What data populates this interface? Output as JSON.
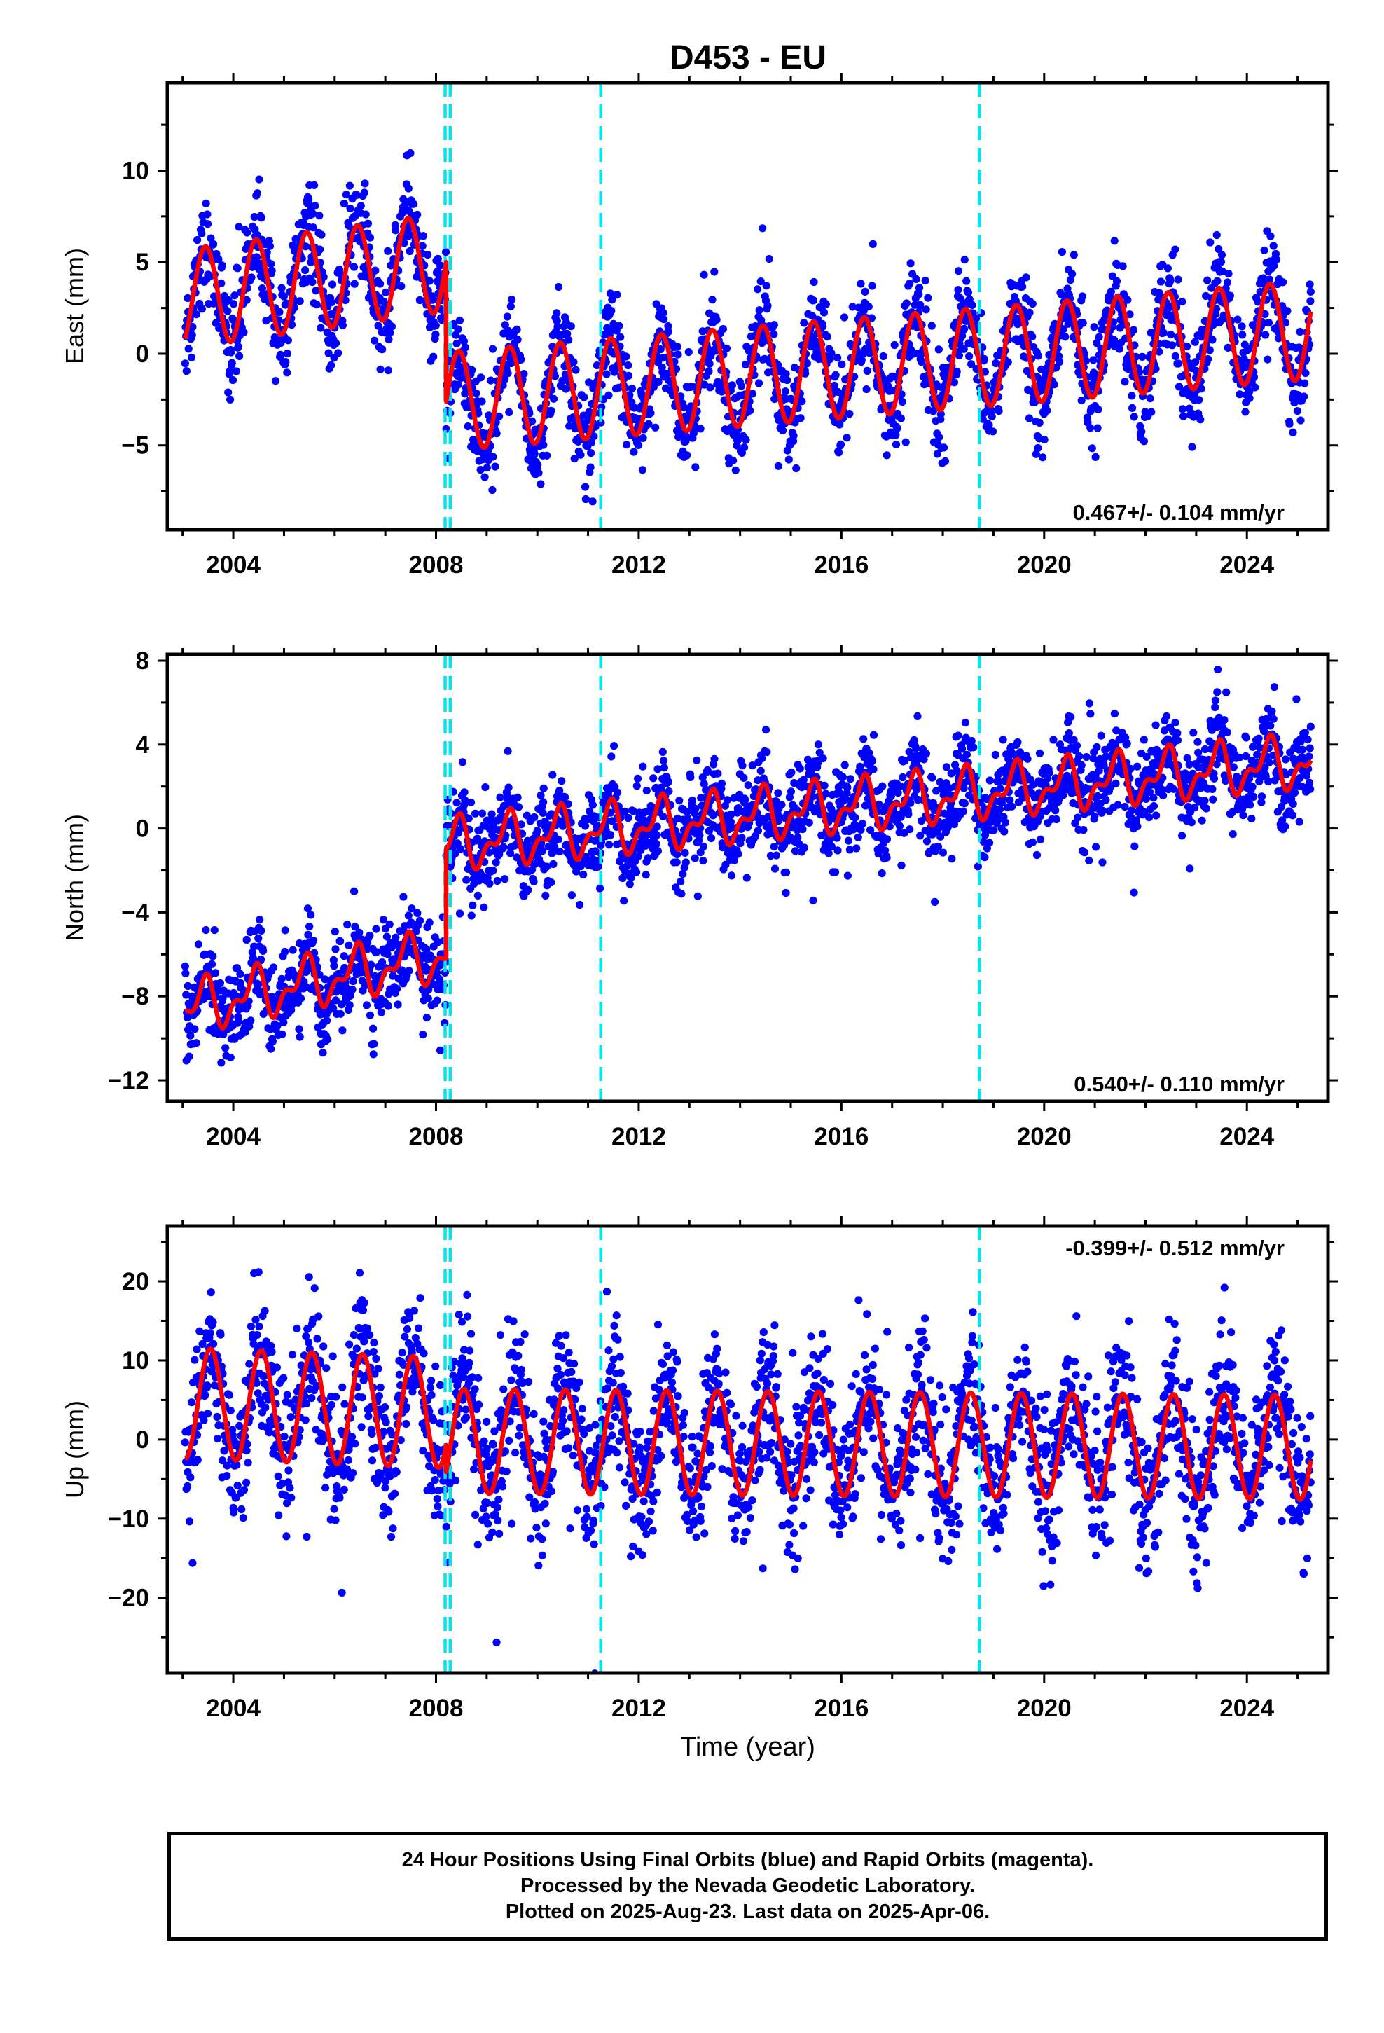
{
  "title": "D453 - EU",
  "colors": {
    "data": "#0000ff",
    "model": "#ff0000",
    "steps": "#00e5ee",
    "frame": "#000000"
  },
  "chart_data": [
    {
      "type": "scatter",
      "component": "east",
      "ylabel": "East (mm)",
      "xlabel": "",
      "xlim": [
        2002.7,
        2025.6
      ],
      "ylim": [
        -9.6,
        14.8
      ],
      "xticks": [
        2004,
        2008,
        2012,
        2016,
        2020,
        2024
      ],
      "yticks": [
        -5,
        0,
        5,
        10
      ],
      "rate_label": "0.467+/- 0.104 mm/yr",
      "rate_position": "bottom-right",
      "data_start": 2003.05,
      "data_end": 2025.26,
      "offset_lines": [
        2008.18,
        2008.28,
        2011.25,
        2018.72
      ],
      "model": {
        "segments": [
          {
            "start": 2003.05,
            "end": 2008.2,
            "level_start": 3.0,
            "level_end": 5.0,
            "amplitude": 2.7
          },
          {
            "start": 2008.2,
            "end": 2025.26,
            "level_start": -2.6,
            "level_end": 1.3,
            "amplitude": 2.7
          }
        ],
        "phase_peak": 0.45
      },
      "scatter_noise": 1.3,
      "approx_counts": 8000
    },
    {
      "type": "scatter",
      "component": "north",
      "ylabel": "North (mm)",
      "xlabel": "",
      "xlim": [
        2002.7,
        2025.6
      ],
      "ylim": [
        -13.0,
        8.3
      ],
      "xticks": [
        2004,
        2008,
        2012,
        2016,
        2020,
        2024
      ],
      "yticks": [
        -12,
        -8,
        -4,
        0,
        4,
        8
      ],
      "rate_label": "0.540+/- 0.110 mm/yr",
      "rate_position": "bottom-right",
      "data_start": 2003.05,
      "data_end": 2025.26,
      "offset_lines": [
        2008.18,
        2008.28,
        2011.25,
        2018.72
      ],
      "model": {
        "segments": [
          {
            "start": 2003.05,
            "end": 2008.2,
            "level_start": -8.6,
            "level_end": -6.0,
            "amplitude": 1.0
          },
          {
            "start": 2008.2,
            "end": 2025.26,
            "level_start": -0.8,
            "level_end": 3.2,
            "amplitude": 1.0
          }
        ],
        "phase_peak": 0.4
      },
      "scatter_noise": 1.05,
      "approx_counts": 8000
    },
    {
      "type": "scatter",
      "component": "up",
      "ylabel": "Up (mm)",
      "xlabel": "Time (year)",
      "xlim": [
        2002.7,
        2025.6
      ],
      "ylim": [
        -29.5,
        27.0
      ],
      "xticks": [
        2004,
        2008,
        2012,
        2016,
        2020,
        2024
      ],
      "yticks": [
        -20,
        -10,
        0,
        10,
        20
      ],
      "rate_label": "-0.399+/- 0.512 mm/yr",
      "rate_position": "top-right",
      "data_start": 2003.05,
      "data_end": 2025.26,
      "offset_lines": [
        2008.18,
        2008.28,
        2011.25,
        2018.72
      ],
      "model": {
        "segments": [
          {
            "start": 2003.05,
            "end": 2008.2,
            "level_start": 4.6,
            "level_end": 3.4,
            "amplitude": 7.0
          },
          {
            "start": 2008.2,
            "end": 2025.26,
            "level_start": -0.2,
            "level_end": -1.0,
            "amplitude": 6.6
          }
        ],
        "phase_peak": 0.55
      },
      "scatter_noise": 4.4,
      "approx_counts": 8000
    }
  ],
  "footer": {
    "line1": "24 Hour Positions Using Final Orbits (blue) and Rapid Orbits (magenta).",
    "line2": "Processed by the Nevada Geodetic Laboratory.",
    "line3": "Plotted on 2025-Aug-23. Last data on 2025-Apr-06."
  }
}
